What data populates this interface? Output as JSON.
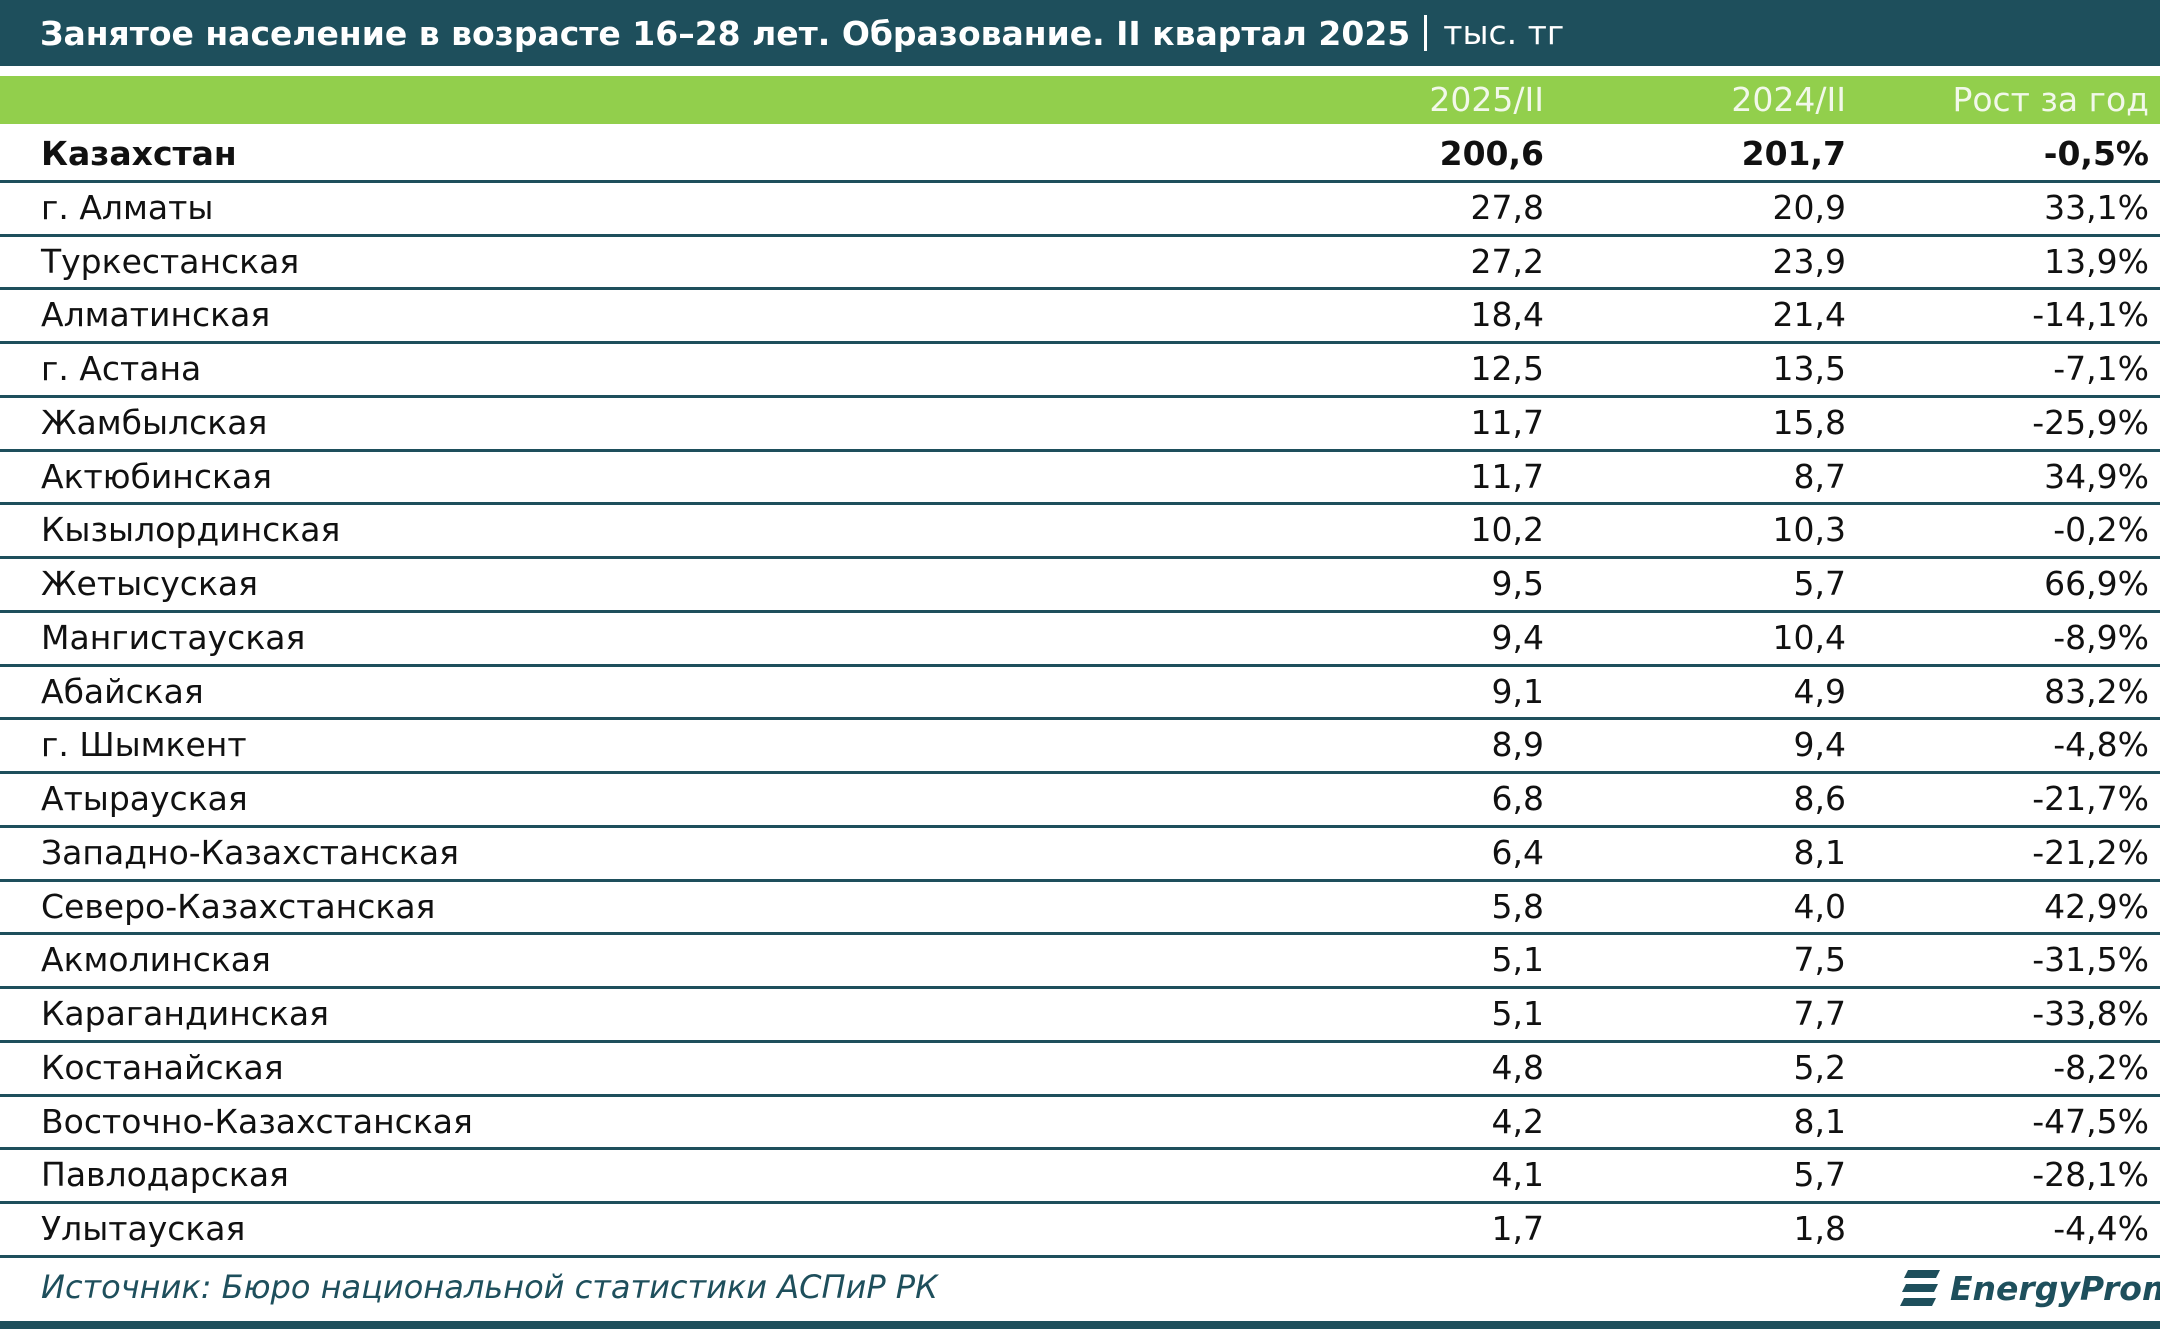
{
  "header": {
    "title": "Занятое население в возрасте 16–28 лет. Образование. II квартал 2025",
    "unit": "тыс. тг"
  },
  "table": {
    "columns": [
      "2025/II",
      "2024/II",
      "Рост за год"
    ],
    "rows": [
      [
        "Казахстан",
        "200,6",
        "201,7",
        "-0,5%"
      ],
      [
        "г. Алматы",
        "27,8",
        "20,9",
        "33,1%"
      ],
      [
        "Туркестанская",
        "27,2",
        "23,9",
        "13,9%"
      ],
      [
        "Алматинская",
        "18,4",
        "21,4",
        "-14,1%"
      ],
      [
        "г. Астана",
        "12,5",
        "13,5",
        "-7,1%"
      ],
      [
        "Жамбылская",
        "11,7",
        "15,8",
        "-25,9%"
      ],
      [
        "Актюбинская",
        "11,7",
        "8,7",
        "34,9%"
      ],
      [
        "Кызылординская",
        "10,2",
        "10,3",
        "-0,2%"
      ],
      [
        "Жетысуская",
        "9,5",
        "5,7",
        "66,9%"
      ],
      [
        "Мангистауская",
        "9,4",
        "10,4",
        "-8,9%"
      ],
      [
        "Абайская",
        "9,1",
        "4,9",
        "83,2%"
      ],
      [
        "г. Шымкент",
        "8,9",
        "9,4",
        "-4,8%"
      ],
      [
        "Атырауская",
        "6,8",
        "8,6",
        "-21,7%"
      ],
      [
        "Западно-Казахстанская",
        "6,4",
        "8,1",
        "-21,2%"
      ],
      [
        "Северо-Казахстанская",
        "5,8",
        "4,0",
        "42,9%"
      ],
      [
        "Акмолинская",
        "5,1",
        "7,5",
        "-31,5%"
      ],
      [
        "Карагандинская",
        "5,1",
        "7,7",
        "-33,8%"
      ],
      [
        "Костанайская",
        "4,8",
        "5,2",
        "-8,2%"
      ],
      [
        "Восточно-Казахстанская",
        "4,2",
        "8,1",
        "-47,5%"
      ],
      [
        "Павлодарская",
        "4,1",
        "5,7",
        "-28,1%"
      ],
      [
        "Улытауская",
        "1,7",
        "1,8",
        "-4,4%"
      ]
    ]
  },
  "footer": {
    "source": "Источник: Бюро национальной статистики АСПиР РК",
    "logo": "EnergyProm"
  }
}
